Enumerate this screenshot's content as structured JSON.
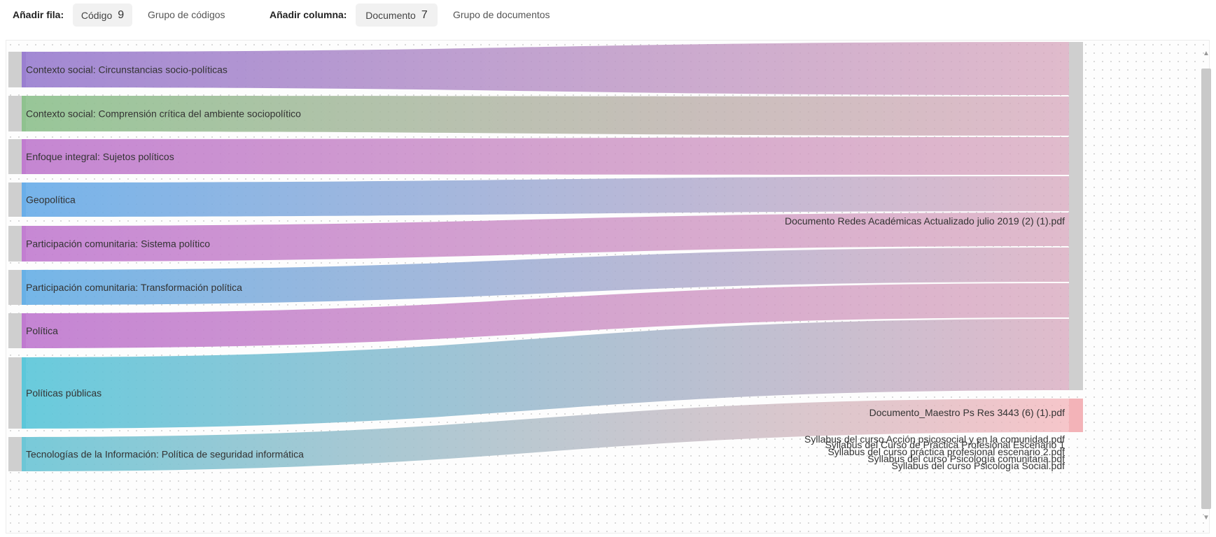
{
  "toolbar": {
    "add_row_label": "Añadir fila:",
    "row_type": {
      "label": "Código",
      "count": "9"
    },
    "row_group_label": "Grupo de códigos",
    "add_column_label": "Añadir columna:",
    "column_type": {
      "label": "Documento",
      "count": "7"
    },
    "column_group_label": "Grupo de documentos"
  },
  "codes": [
    {
      "label": "Contexto social: Circunstancias socio-políticas",
      "color": "#9a7fd0"
    },
    {
      "label": "Contexto social: Comprensión crítica del ambiente sociopolítico",
      "color": "#8fc28f"
    },
    {
      "label": "Enfoque integral: Sujetos políticos",
      "color": "#c07ccf"
    },
    {
      "label": "Geopolítica",
      "color": "#6aaee9"
    },
    {
      "label": "Participación comunitaria: Sistema político",
      "color": "#c27ed1"
    },
    {
      "label": "Participación comunitaria: Transformación política",
      "color": "#68b0e6"
    },
    {
      "label": "Política",
      "color": "#c07ad0"
    },
    {
      "label": "Políticas públicas",
      "color": "#5cc7da"
    },
    {
      "label": "Tecnologías de la Información: Política de seguridad informática",
      "color": "#6dc6d6"
    }
  ],
  "documents": [
    {
      "label": "Documento Redes Académicas Actualizado julio 2019 (2) (1).pdf",
      "color": "#d8a9be"
    },
    {
      "label": "Documento_Maestro Ps Res 3443 (6) (1).pdf",
      "color": "#f3b3b8"
    },
    {
      "label": "Syllabus del curso Acción psicosocial y en la comunidad.pdf",
      "color": "#cccccc"
    },
    {
      "label": "Syllabus del Curso de Práctica Profesional Escenario 1",
      "color": "#cccccc"
    },
    {
      "label": "Syllabus del curso práctica profesional escenario 2.pdf",
      "color": "#cccccc"
    },
    {
      "label": "Syllabus del curso Psicología comunitaria.pdf",
      "color": "#cccccc"
    },
    {
      "label": "Syllabus del curso Psicología Social.pdf",
      "color": "#cccccc"
    }
  ],
  "scrollbar": {
    "up_icon": "▲",
    "down_icon": "▼"
  }
}
